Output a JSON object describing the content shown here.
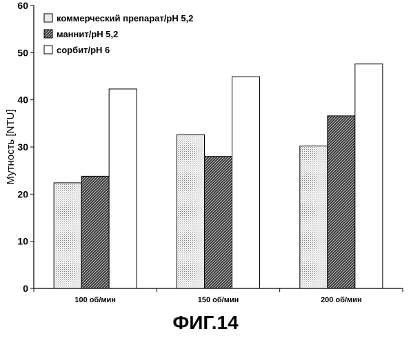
{
  "figure_caption": "ФИГ.14",
  "colors": {
    "axis": "#000000",
    "bar_border": "#000000",
    "series_commercial": "dotted-light-gray",
    "series_mannit": "diagonal-dark-hatch",
    "series_sorbit": "#ffffff"
  },
  "chart_data": {
    "type": "bar",
    "title": "",
    "xlabel": "",
    "ylabel": "Мутность [NTU]",
    "ylim": [
      0,
      60
    ],
    "yticks": [
      0,
      10,
      20,
      30,
      40,
      50,
      60
    ],
    "grid": false,
    "legend_position": "top-left",
    "categories": [
      "100 об/мин",
      "150 об/мин",
      "200 об/мин"
    ],
    "series": [
      {
        "name": "коммерческий препарат/рН 5,2",
        "pattern": "dots",
        "values": [
          22.4,
          32.6,
          30.2
        ]
      },
      {
        "name": "маннит/рН 5,2",
        "pattern": "hatch",
        "values": [
          23.8,
          28.0,
          36.6
        ]
      },
      {
        "name": "сорбит/рН 6",
        "pattern": "white",
        "values": [
          42.3,
          44.9,
          47.6
        ]
      }
    ]
  }
}
